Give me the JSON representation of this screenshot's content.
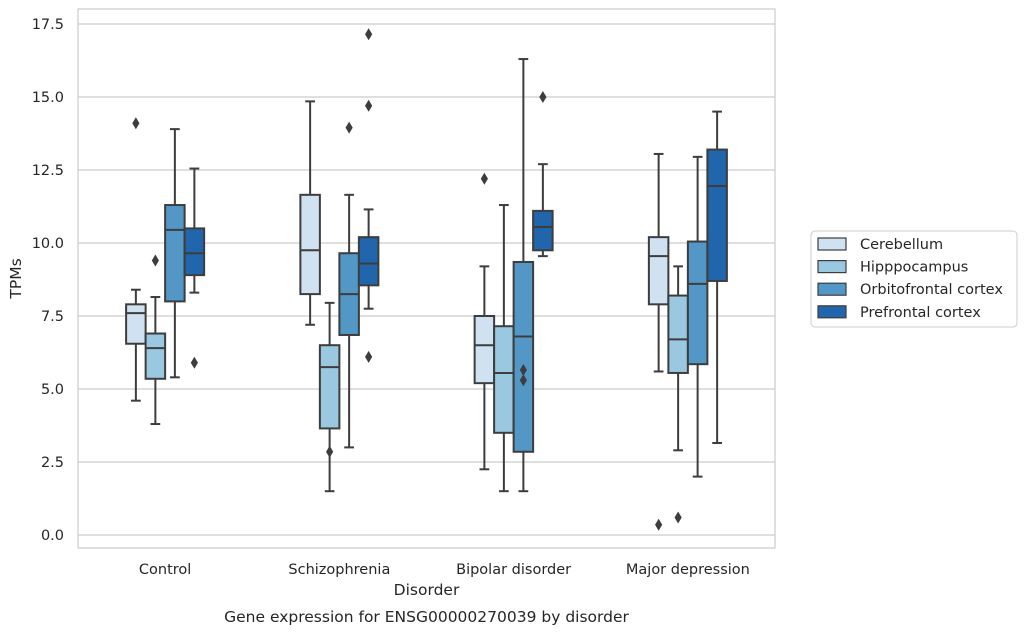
{
  "chart_data": {
    "type": "boxplot",
    "caption": "Gene expression for ENSG00000270039 by disorder",
    "xlabel": "Disorder",
    "ylabel": "TPMs",
    "ylim": [
      -0.4,
      17.9
    ],
    "yticks": [
      0.0,
      2.5,
      5.0,
      7.5,
      10.0,
      12.5,
      15.0,
      17.5
    ],
    "ytick_labels": [
      "0.0",
      "2.5",
      "5.0",
      "7.5",
      "10.0",
      "12.5",
      "15.0",
      "17.5"
    ],
    "grid": "horizontal",
    "legend_position": "right",
    "categories": [
      "Control",
      "Schizophrenia",
      "Bipolar disorder",
      "Major depression"
    ],
    "series": [
      {
        "name": "Cerebellum",
        "color": "#d0e1f2",
        "boxes": [
          {
            "whislo": 4.6,
            "q1": 6.55,
            "med": 7.6,
            "q3": 7.9,
            "whishi": 8.4,
            "fliers": [
              14.1
            ]
          },
          {
            "whislo": 7.2,
            "q1": 8.25,
            "med": 9.75,
            "q3": 11.65,
            "whishi": 14.85,
            "fliers": []
          },
          {
            "whislo": 2.25,
            "q1": 5.2,
            "med": 6.5,
            "q3": 7.5,
            "whishi": 9.2,
            "fliers": [
              12.2
            ]
          },
          {
            "whislo": 5.6,
            "q1": 7.9,
            "med": 9.55,
            "q3": 10.2,
            "whishi": 13.05,
            "fliers": [
              0.35
            ]
          }
        ]
      },
      {
        "name": "Hipppocampus",
        "color": "#9ac8e0",
        "boxes": [
          {
            "whislo": 3.8,
            "q1": 5.35,
            "med": 6.4,
            "q3": 6.9,
            "whishi": 8.15,
            "fliers": [
              9.4
            ]
          },
          {
            "whislo": 1.5,
            "q1": 3.65,
            "med": 5.75,
            "q3": 6.5,
            "whishi": 7.95,
            "fliers": [
              2.85
            ]
          },
          {
            "whislo": 1.5,
            "q1": 3.5,
            "med": 5.55,
            "q3": 7.15,
            "whishi": 11.3,
            "fliers": []
          },
          {
            "whislo": 2.9,
            "q1": 5.55,
            "med": 6.7,
            "q3": 8.2,
            "whishi": 9.2,
            "fliers": [
              0.6
            ]
          }
        ]
      },
      {
        "name": "Orbitofrontal cortex",
        "color": "#5297c6",
        "boxes": [
          {
            "whislo": 5.4,
            "q1": 8.0,
            "med": 10.45,
            "q3": 11.3,
            "whishi": 13.9,
            "fliers": []
          },
          {
            "whislo": 3.0,
            "q1": 6.85,
            "med": 8.25,
            "q3": 9.65,
            "whishi": 11.65,
            "fliers": [
              13.95
            ]
          },
          {
            "whislo": 1.5,
            "q1": 2.85,
            "med": 6.8,
            "q3": 9.35,
            "whishi": 16.3,
            "fliers": [
              5.65,
              5.3
            ]
          },
          {
            "whislo": 2.0,
            "q1": 5.85,
            "med": 8.6,
            "q3": 10.05,
            "whishi": 12.95,
            "fliers": []
          }
        ]
      },
      {
        "name": "Prefrontal cortex",
        "color": "#2166ac",
        "boxes": [
          {
            "whislo": 8.3,
            "q1": 8.9,
            "med": 9.65,
            "q3": 10.5,
            "whishi": 12.55,
            "fliers": [
              5.9
            ]
          },
          {
            "whislo": 7.75,
            "q1": 8.55,
            "med": 9.3,
            "q3": 10.2,
            "whishi": 11.15,
            "fliers": [
              17.15,
              14.7,
              6.1
            ]
          },
          {
            "whislo": 9.55,
            "q1": 9.75,
            "med": 10.55,
            "q3": 11.1,
            "whishi": 12.7,
            "fliers": [
              15.0
            ]
          },
          {
            "whislo": 3.15,
            "q1": 8.7,
            "med": 11.95,
            "q3": 13.2,
            "whishi": 14.5,
            "fliers": []
          }
        ]
      }
    ]
  }
}
